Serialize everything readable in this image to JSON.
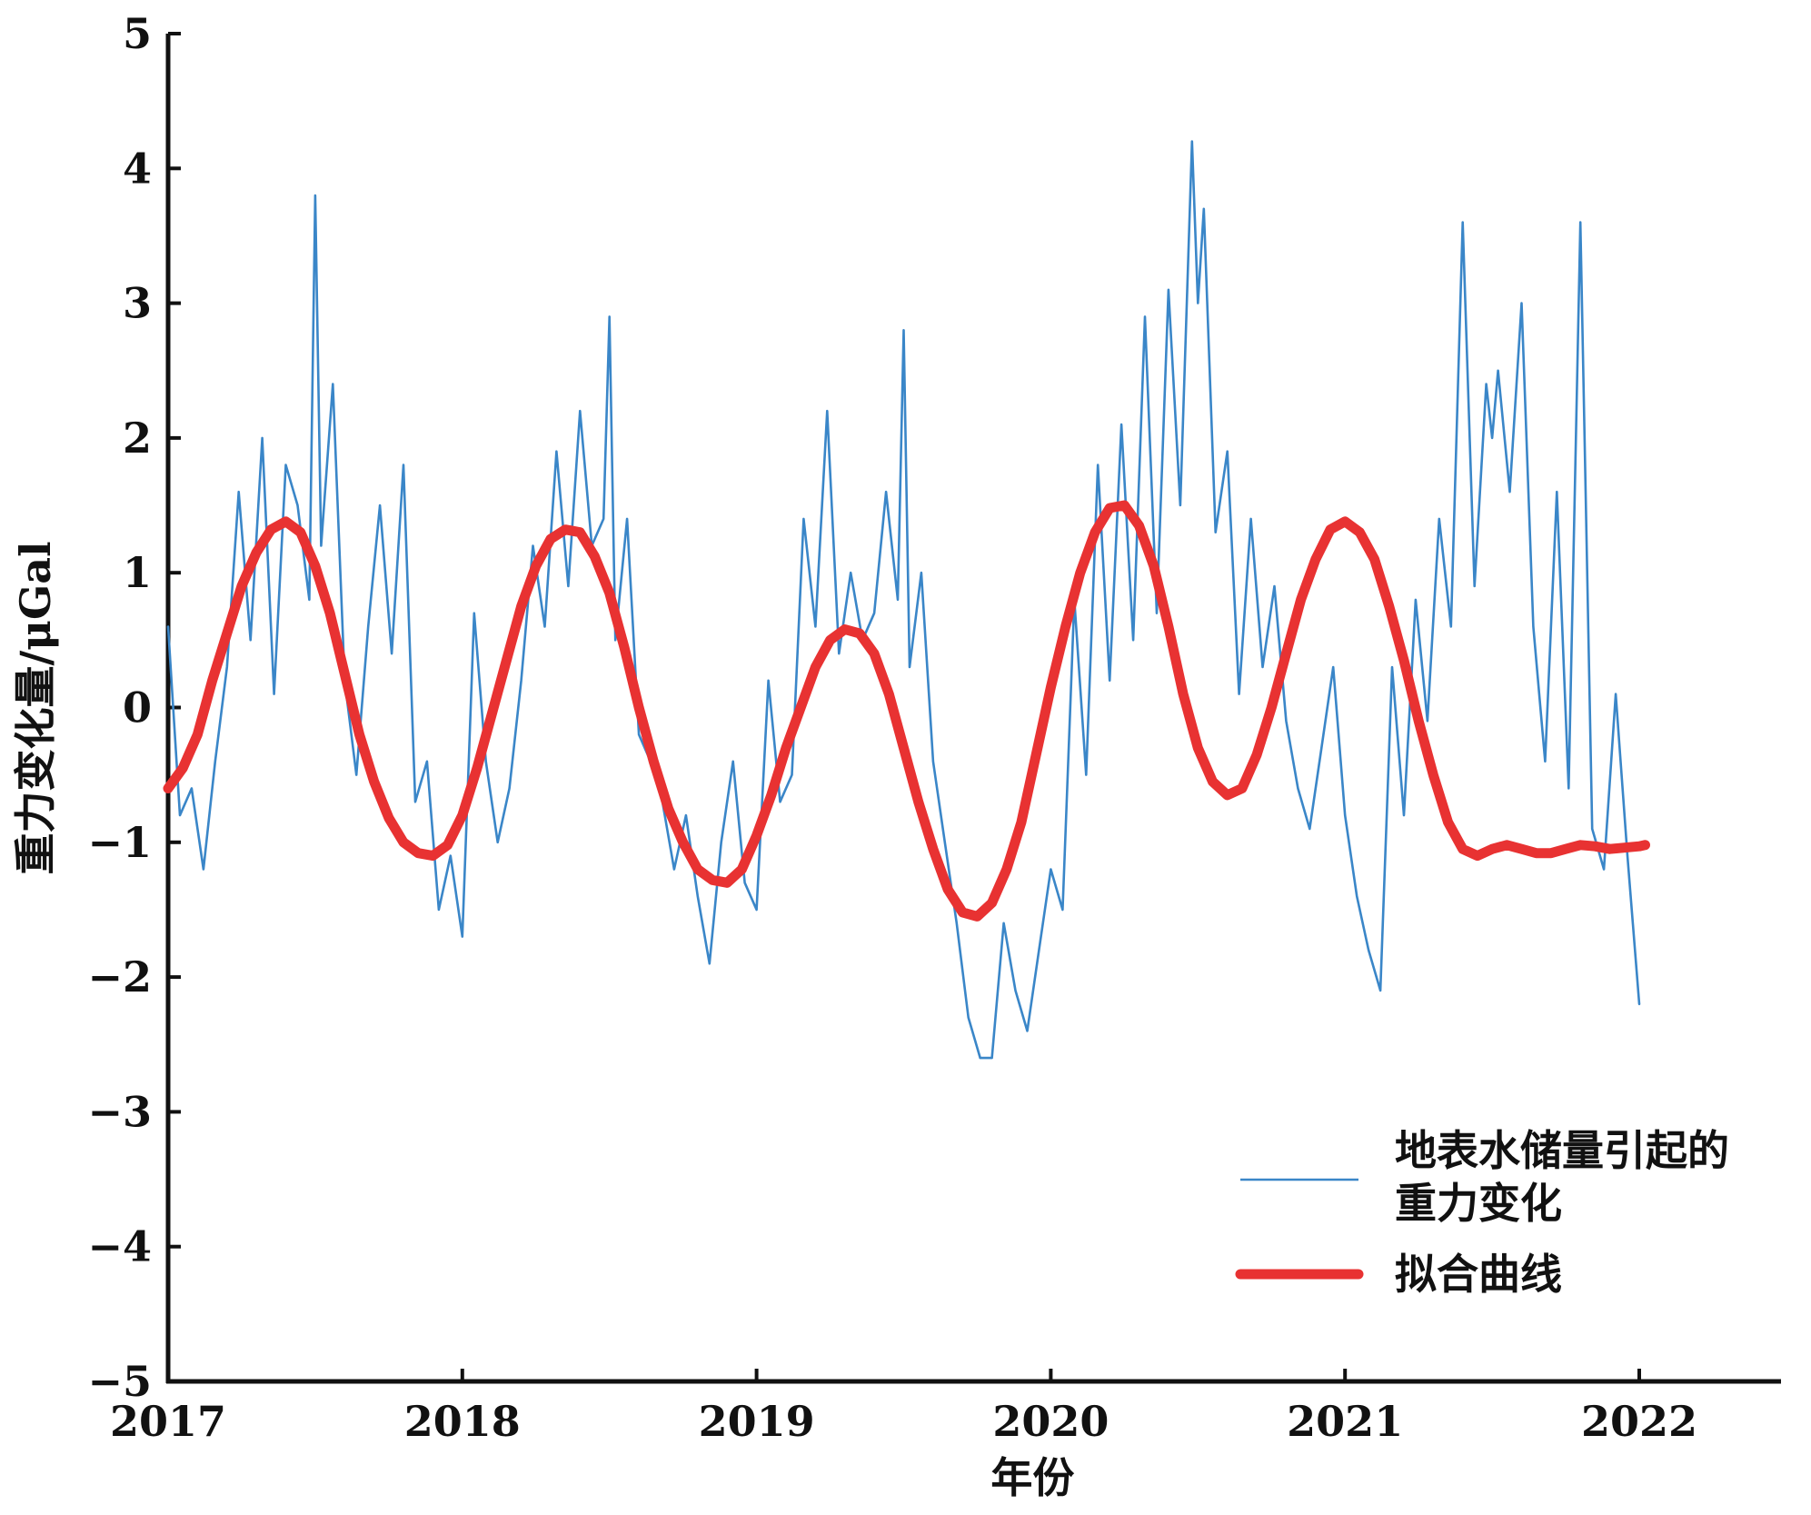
{
  "chart_data": {
    "type": "line",
    "xlabel": "年份",
    "ylabel": "重力变化量/μGal",
    "xlim": [
      2017,
      2022.5
    ],
    "ylim": [
      -5,
      5
    ],
    "x_ticks": [
      2017,
      2018,
      2019,
      2020,
      2021,
      2022
    ],
    "y_ticks": [
      -5,
      -4,
      -3,
      -2,
      -1,
      0,
      1,
      2,
      3,
      4,
      5
    ],
    "x_tick_labels": [
      "2017",
      "2018",
      "2019",
      "2020",
      "2021",
      "2022"
    ],
    "y_tick_labels": [
      "−5",
      "−4",
      "−3",
      "−2",
      "−1",
      "0",
      "1",
      "2",
      "3",
      "4",
      "5"
    ],
    "grid": false,
    "legend_position": "bottom-right",
    "series": [
      {
        "name": "地表水储量引起的\n重力变化",
        "name_lines": [
          "地表水储量引起的",
          "重力变化"
        ],
        "color": "#3a86c8",
        "style": "thin",
        "x": [
          2017.0,
          2017.04,
          2017.08,
          2017.12,
          2017.16,
          2017.2,
          2017.24,
          2017.28,
          2017.32,
          2017.36,
          2017.4,
          2017.44,
          2017.48,
          2017.5,
          2017.52,
          2017.56,
          2017.6,
          2017.64,
          2017.68,
          2017.72,
          2017.76,
          2017.8,
          2017.84,
          2017.88,
          2017.92,
          2017.96,
          2018.0,
          2018.04,
          2018.08,
          2018.12,
          2018.16,
          2018.2,
          2018.24,
          2018.28,
          2018.32,
          2018.36,
          2018.4,
          2018.44,
          2018.48,
          2018.5,
          2018.52,
          2018.56,
          2018.6,
          2018.64,
          2018.68,
          2018.72,
          2018.76,
          2018.8,
          2018.84,
          2018.88,
          2018.92,
          2018.96,
          2019.0,
          2019.04,
          2019.08,
          2019.12,
          2019.16,
          2019.2,
          2019.24,
          2019.28,
          2019.32,
          2019.36,
          2019.4,
          2019.44,
          2019.48,
          2019.5,
          2019.52,
          2019.56,
          2019.6,
          2019.64,
          2019.68,
          2019.72,
          2019.76,
          2019.8,
          2019.84,
          2019.88,
          2019.92,
          2019.96,
          2020.0,
          2020.04,
          2020.08,
          2020.12,
          2020.16,
          2020.2,
          2020.24,
          2020.28,
          2020.32,
          2020.36,
          2020.4,
          2020.44,
          2020.48,
          2020.5,
          2020.52,
          2020.56,
          2020.6,
          2020.64,
          2020.68,
          2020.72,
          2020.76,
          2020.8,
          2020.84,
          2020.88,
          2020.92,
          2020.96,
          2021.0,
          2021.04,
          2021.08,
          2021.12,
          2021.16,
          2021.2,
          2021.24,
          2021.28,
          2021.32,
          2021.36,
          2021.4,
          2021.44,
          2021.48,
          2021.5,
          2021.52,
          2021.56,
          2021.6,
          2021.64,
          2021.68,
          2021.72,
          2021.76,
          2021.8,
          2021.84,
          2021.88,
          2021.92,
          2021.96,
          2022.0
        ],
        "y": [
          0.6,
          -0.8,
          -0.6,
          -1.2,
          -0.4,
          0.3,
          1.6,
          0.5,
          2.0,
          0.1,
          1.8,
          1.5,
          0.8,
          3.8,
          1.2,
          2.4,
          0.2,
          -0.5,
          0.6,
          1.5,
          0.4,
          1.8,
          -0.7,
          -0.4,
          -1.5,
          -1.1,
          -1.7,
          0.7,
          -0.4,
          -1.0,
          -0.6,
          0.2,
          1.2,
          0.6,
          1.9,
          0.9,
          2.2,
          1.2,
          1.4,
          2.9,
          0.5,
          1.4,
          -0.2,
          -0.4,
          -0.7,
          -1.2,
          -0.8,
          -1.4,
          -1.9,
          -1.0,
          -0.4,
          -1.3,
          -1.5,
          0.2,
          -0.7,
          -0.5,
          1.4,
          0.6,
          2.2,
          0.4,
          1.0,
          0.5,
          0.7,
          1.6,
          0.8,
          2.8,
          0.3,
          1.0,
          -0.4,
          -1.0,
          -1.6,
          -2.3,
          -2.6,
          -2.6,
          -1.6,
          -2.1,
          -2.4,
          -1.8,
          -1.2,
          -1.5,
          0.8,
          -0.5,
          1.8,
          0.2,
          2.1,
          0.5,
          2.9,
          0.7,
          3.1,
          1.5,
          4.2,
          3.0,
          3.7,
          1.3,
          1.9,
          0.1,
          1.4,
          0.3,
          0.9,
          -0.1,
          -0.6,
          -0.9,
          -0.3,
          0.3,
          -0.8,
          -1.4,
          -1.8,
          -2.1,
          0.3,
          -0.8,
          0.8,
          -0.1,
          1.4,
          0.6,
          3.6,
          0.9,
          2.4,
          2.0,
          2.5,
          1.6,
          3.0,
          0.6,
          -0.4,
          1.6,
          -0.6,
          3.6,
          -0.9,
          -1.2,
          0.1,
          -1.1,
          -2.2
        ]
      },
      {
        "name": "拟合曲线",
        "color": "#e83232",
        "style": "thick",
        "x": [
          2017.0,
          2017.05,
          2017.1,
          2017.15,
          2017.2,
          2017.25,
          2017.3,
          2017.35,
          2017.4,
          2017.45,
          2017.5,
          2017.55,
          2017.6,
          2017.65,
          2017.7,
          2017.75,
          2017.8,
          2017.85,
          2017.9,
          2017.95,
          2018.0,
          2018.05,
          2018.1,
          2018.15,
          2018.2,
          2018.25,
          2018.3,
          2018.35,
          2018.4,
          2018.45,
          2018.5,
          2018.55,
          2018.6,
          2018.65,
          2018.7,
          2018.75,
          2018.8,
          2018.85,
          2018.9,
          2018.95,
          2019.0,
          2019.05,
          2019.1,
          2019.15,
          2019.2,
          2019.25,
          2019.3,
          2019.35,
          2019.4,
          2019.45,
          2019.5,
          2019.55,
          2019.6,
          2019.65,
          2019.7,
          2019.75,
          2019.8,
          2019.85,
          2019.9,
          2019.95,
          2020.0,
          2020.05,
          2020.1,
          2020.15,
          2020.2,
          2020.25,
          2020.3,
          2020.35,
          2020.4,
          2020.45,
          2020.5,
          2020.55,
          2020.6,
          2020.65,
          2020.7,
          2020.75,
          2020.8,
          2020.85,
          2020.9,
          2020.95,
          2021.0,
          2021.05,
          2021.1,
          2021.15,
          2021.2,
          2021.25,
          2021.3,
          2021.35,
          2021.4,
          2021.45,
          2021.5,
          2021.55,
          2021.6,
          2021.65,
          2021.7,
          2021.75,
          2021.8,
          2021.85,
          2021.9,
          2021.95,
          2022.0,
          2022.02
        ],
        "y": [
          -0.6,
          -0.45,
          -0.2,
          0.2,
          0.55,
          0.9,
          1.15,
          1.32,
          1.38,
          1.3,
          1.05,
          0.7,
          0.25,
          -0.2,
          -0.55,
          -0.82,
          -1.0,
          -1.08,
          -1.1,
          -1.02,
          -0.8,
          -0.45,
          -0.05,
          0.35,
          0.75,
          1.05,
          1.25,
          1.32,
          1.3,
          1.12,
          0.85,
          0.45,
          0.0,
          -0.4,
          -0.75,
          -1.0,
          -1.2,
          -1.28,
          -1.3,
          -1.2,
          -0.95,
          -0.65,
          -0.3,
          0.0,
          0.3,
          0.5,
          0.58,
          0.55,
          0.4,
          0.1,
          -0.3,
          -0.7,
          -1.05,
          -1.35,
          -1.52,
          -1.55,
          -1.45,
          -1.2,
          -0.85,
          -0.35,
          0.15,
          0.6,
          1.0,
          1.3,
          1.48,
          1.5,
          1.35,
          1.05,
          0.6,
          0.1,
          -0.3,
          -0.55,
          -0.65,
          -0.6,
          -0.35,
          0.0,
          0.4,
          0.8,
          1.1,
          1.32,
          1.38,
          1.3,
          1.1,
          0.75,
          0.35,
          -0.1,
          -0.5,
          -0.85,
          -1.05,
          -1.1,
          -1.05,
          -1.02,
          -1.05,
          -1.08,
          -1.08,
          -1.05,
          -1.02,
          -1.03,
          -1.05,
          -1.04,
          -1.03,
          -1.02
        ]
      }
    ]
  }
}
